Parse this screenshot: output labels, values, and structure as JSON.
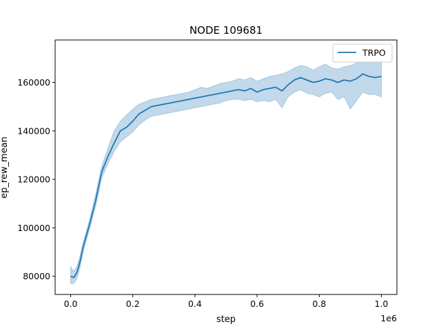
{
  "chart_data": {
    "type": "line",
    "title": "NODE 109681",
    "xlabel": "step",
    "ylabel": "ep_rew_mean",
    "x_offset_label": "1e6",
    "xlim": [
      -0.05,
      1.05
    ],
    "ylim": [
      72500,
      177500
    ],
    "x_ticks": [
      0.0,
      0.2,
      0.4,
      0.6,
      0.8,
      1.0
    ],
    "x_tick_labels": [
      "0.0",
      "0.2",
      "0.4",
      "0.6",
      "0.8",
      "1.0"
    ],
    "y_ticks": [
      80000,
      100000,
      120000,
      140000,
      160000
    ],
    "y_tick_labels": [
      "80000",
      "100000",
      "120000",
      "140000",
      "160000"
    ],
    "grid": false,
    "legend_position": "top-right",
    "series": [
      {
        "name": "TRPO",
        "color": "#1f77b4",
        "band_color": "#1f77b4",
        "x": [
          0.0,
          0.01,
          0.02,
          0.03,
          0.04,
          0.06,
          0.08,
          0.1,
          0.12,
          0.14,
          0.16,
          0.18,
          0.2,
          0.22,
          0.24,
          0.26,
          0.28,
          0.3,
          0.32,
          0.34,
          0.36,
          0.38,
          0.4,
          0.42,
          0.44,
          0.46,
          0.48,
          0.5,
          0.52,
          0.54,
          0.56,
          0.58,
          0.6,
          0.62,
          0.64,
          0.66,
          0.68,
          0.7,
          0.72,
          0.74,
          0.76,
          0.78,
          0.8,
          0.82,
          0.84,
          0.86,
          0.88,
          0.9,
          0.92,
          0.94,
          0.96,
          0.98,
          1.0
        ],
        "mean": [
          80000,
          79500,
          81500,
          86000,
          92000,
          101000,
          111000,
          123000,
          129500,
          135000,
          140000,
          141500,
          144000,
          147000,
          148500,
          150000,
          150500,
          151000,
          151500,
          152000,
          152500,
          153000,
          153500,
          154000,
          154500,
          155000,
          155500,
          156000,
          156500,
          157000,
          156500,
          157500,
          156000,
          157000,
          157500,
          158000,
          156500,
          159000,
          161000,
          162000,
          161000,
          160000,
          160500,
          161500,
          161000,
          160000,
          161000,
          160500,
          161500,
          163500,
          162500,
          162000,
          162500
        ],
        "upper": [
          84000,
          82000,
          84000,
          88500,
          94000,
          103000,
          113500,
          125500,
          133000,
          140000,
          144000,
          146500,
          149000,
          151000,
          152000,
          153000,
          153500,
          154000,
          154500,
          155000,
          155500,
          156000,
          157000,
          158000,
          157500,
          158500,
          159500,
          160000,
          160500,
          161500,
          161000,
          162000,
          160500,
          161500,
          162500,
          163000,
          163500,
          164500,
          166000,
          167000,
          166500,
          165000,
          166500,
          167500,
          166000,
          165500,
          166500,
          167000,
          168000,
          169500,
          169000,
          170000,
          171000
        ],
        "lower": [
          77000,
          77000,
          79000,
          83500,
          90000,
          99000,
          108500,
          120500,
          126500,
          131500,
          135500,
          137500,
          139500,
          142500,
          144500,
          146000,
          146500,
          147000,
          147500,
          148000,
          148500,
          149000,
          149500,
          150000,
          150500,
          151000,
          151500,
          152500,
          153000,
          153000,
          152500,
          153000,
          152000,
          152500,
          152000,
          153000,
          149500,
          154000,
          156000,
          157000,
          155500,
          155000,
          154000,
          155500,
          156000,
          153000,
          154000,
          149000,
          152500,
          156000,
          155000,
          155000,
          154000
        ]
      }
    ]
  }
}
